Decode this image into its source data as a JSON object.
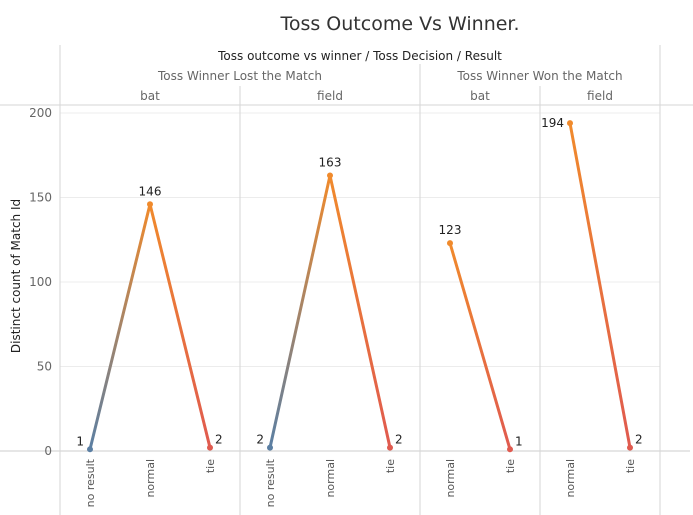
{
  "chart_data": {
    "type": "line",
    "title": "Toss Outcome Vs Winner.",
    "header": "Toss outcome vs winner  /  Toss Decision  /  Result",
    "ylabel": "Distinct count of Match Id",
    "ylim": [
      0,
      200
    ],
    "yticks": [
      0,
      50,
      100,
      150,
      200
    ],
    "grid": true,
    "result_colors": {
      "no result": "#5b7fa3",
      "normal": "#f08a2c",
      "tie": "#e05a4f"
    },
    "groups": [
      {
        "outcome": "Toss Winner Lost the Match",
        "panels": [
          {
            "decision": "bat",
            "categories": [
              "no result",
              "normal",
              "tie"
            ],
            "values": [
              1,
              146,
              2
            ]
          },
          {
            "decision": "field",
            "categories": [
              "no result",
              "normal",
              "tie"
            ],
            "values": [
              2,
              163,
              2
            ]
          }
        ]
      },
      {
        "outcome": "Toss Winner Won the Match",
        "panels": [
          {
            "decision": "bat",
            "categories": [
              "normal",
              "tie"
            ],
            "values": [
              123,
              1
            ]
          },
          {
            "decision": "field",
            "categories": [
              "normal",
              "tie"
            ],
            "values": [
              194,
              2
            ]
          }
        ]
      }
    ]
  }
}
